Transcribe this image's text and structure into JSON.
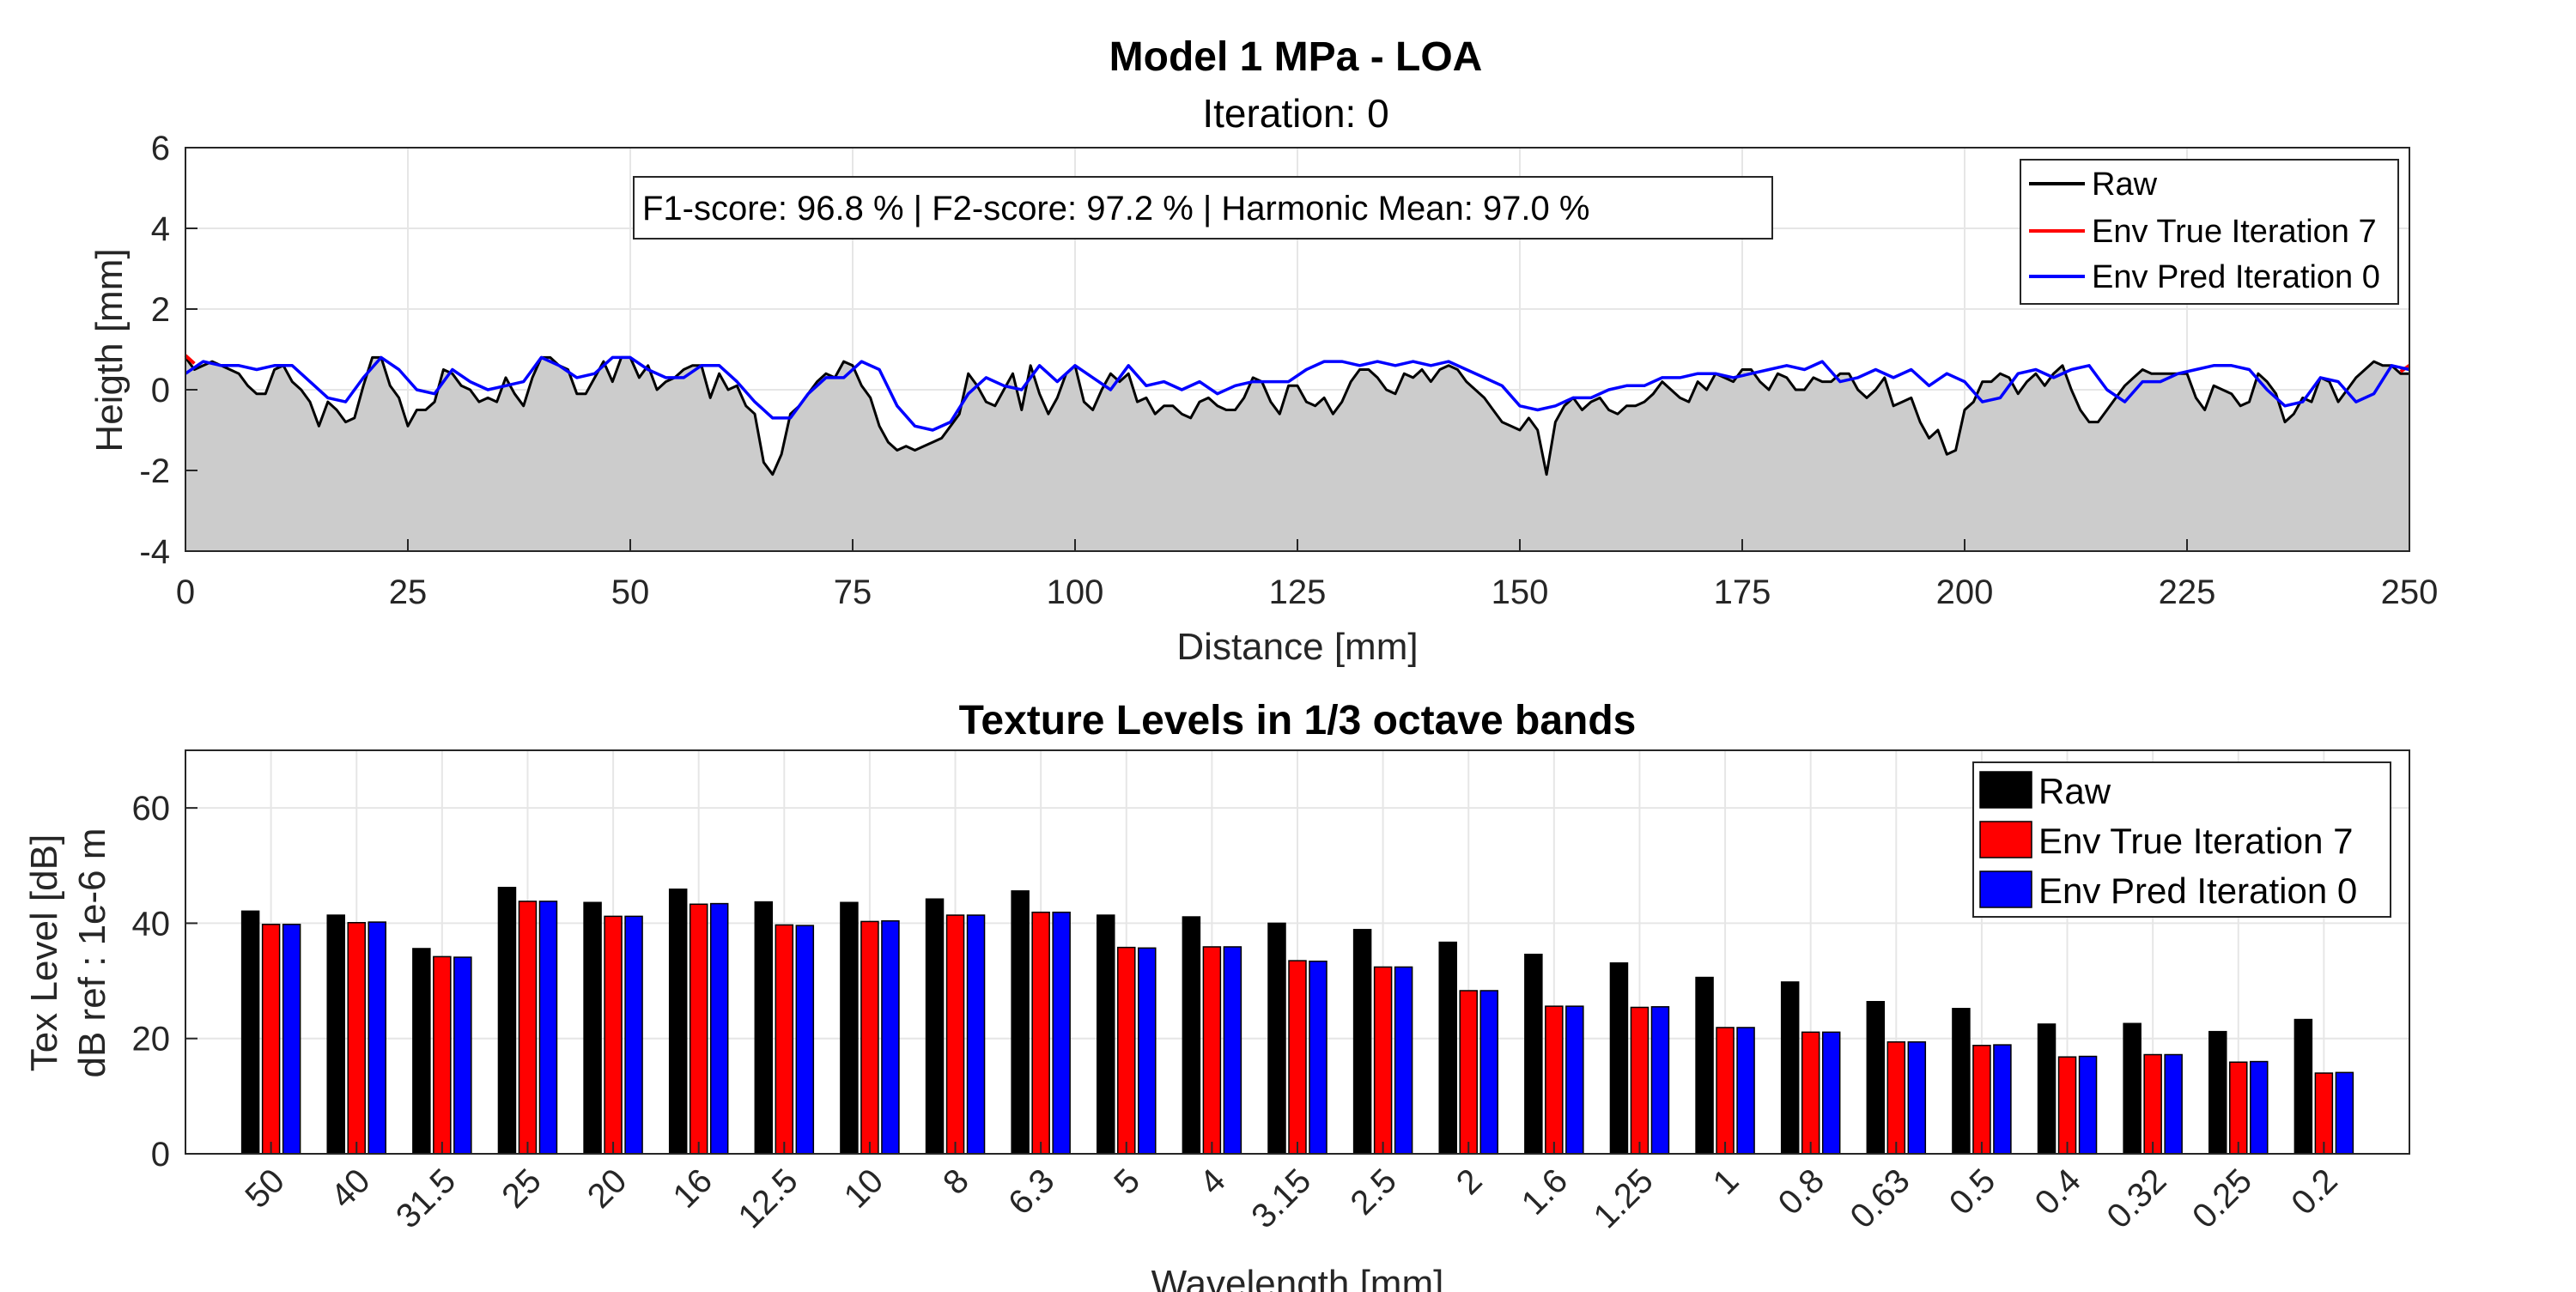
{
  "chart_data": [
    {
      "type": "line",
      "title": "Model 1 MPa - LOA",
      "subtitle": "Iteration: 0",
      "xlabel": "Distance [mm]",
      "ylabel": "Heigth [mm]",
      "xlim": [
        0,
        250
      ],
      "ylim": [
        -4,
        6
      ],
      "xticks": [
        0,
        25,
        50,
        75,
        100,
        125,
        150,
        175,
        200,
        225,
        250
      ],
      "yticks": [
        -4,
        -2,
        0,
        2,
        4,
        6
      ],
      "grid": true,
      "legend_position": "top-right",
      "annotation": "F1-score: 96.8 % | F2-score: 97.2 % | Harmonic Mean: 97.0 %",
      "series": [
        {
          "name": "Raw",
          "color": "#000000",
          "fill_below": "#cccccc",
          "x": [
            0,
            1,
            2,
            3,
            4,
            5,
            6,
            7,
            8,
            9,
            10,
            11,
            12,
            13,
            14,
            15,
            16,
            17,
            18,
            19,
            20,
            21,
            22,
            23,
            24,
            25,
            26,
            27,
            28,
            29,
            30,
            31,
            32,
            33,
            34,
            35,
            36,
            37,
            38,
            39,
            40,
            41,
            42,
            43,
            44,
            45,
            46,
            47,
            48,
            49,
            50,
            51,
            52,
            53,
            54,
            55,
            56,
            57,
            58,
            59,
            60,
            61,
            62,
            63,
            64,
            65,
            66,
            67,
            68,
            69,
            70,
            71,
            72,
            73,
            74,
            75,
            76,
            77,
            78,
            79,
            80,
            81,
            82,
            83,
            84,
            85,
            86,
            87,
            88,
            89,
            90,
            91,
            92,
            93,
            94,
            95,
            96,
            97,
            98,
            99,
            100,
            101,
            102,
            103,
            104,
            105,
            106,
            107,
            108,
            109,
            110,
            111,
            112,
            113,
            114,
            115,
            116,
            117,
            118,
            119,
            120,
            121,
            122,
            123,
            124,
            125,
            126,
            127,
            128,
            129,
            130,
            131,
            132,
            133,
            134,
            135,
            136,
            137,
            138,
            139,
            140,
            141,
            142,
            143,
            144,
            145,
            146,
            147,
            148,
            149,
            150,
            151,
            152,
            153,
            154,
            155,
            156,
            157,
            158,
            159,
            160,
            161,
            162,
            163,
            164,
            165,
            166,
            167,
            168,
            169,
            170,
            171,
            172,
            173,
            174,
            175,
            176,
            177,
            178,
            179,
            180,
            181,
            182,
            183,
            184,
            185,
            186,
            187,
            188,
            189,
            190,
            191,
            192,
            193,
            194,
            195,
            196,
            197,
            198,
            199,
            200,
            201,
            202,
            203,
            204,
            205,
            206,
            207,
            208,
            209,
            210,
            211,
            212,
            213,
            214,
            215,
            216,
            217,
            218,
            219,
            220,
            221,
            222,
            223,
            224,
            225,
            226,
            227,
            228,
            229,
            230,
            231,
            232,
            233,
            234,
            235,
            236,
            237,
            238,
            239,
            240,
            241,
            242,
            243,
            244,
            245,
            246,
            247,
            248,
            249,
            250
          ],
          "y": [
            0.8,
            0.5,
            0.6,
            0.7,
            0.6,
            0.5,
            0.4,
            0.1,
            -0.1,
            -0.1,
            0.5,
            0.6,
            0.2,
            0.0,
            -0.3,
            -0.9,
            -0.3,
            -0.5,
            -0.8,
            -0.7,
            0.1,
            0.8,
            0.8,
            0.1,
            -0.2,
            -0.9,
            -0.5,
            -0.5,
            -0.3,
            0.5,
            0.4,
            0.1,
            0.0,
            -0.3,
            -0.2,
            -0.3,
            0.3,
            -0.1,
            -0.4,
            0.3,
            0.8,
            0.8,
            0.6,
            0.5,
            -0.1,
            -0.1,
            0.3,
            0.7,
            0.2,
            0.8,
            0.8,
            0.3,
            0.6,
            0.0,
            0.2,
            0.3,
            0.5,
            0.6,
            0.6,
            -0.2,
            0.4,
            0.0,
            0.1,
            -0.4,
            -0.6,
            -1.8,
            -2.1,
            -1.6,
            -0.6,
            -0.4,
            -0.1,
            0.2,
            0.4,
            0.3,
            0.7,
            0.6,
            0.1,
            -0.2,
            -0.9,
            -1.3,
            -1.5,
            -1.4,
            -1.5,
            -1.4,
            -1.3,
            -1.2,
            -0.9,
            -0.6,
            0.4,
            0.1,
            -0.3,
            -0.4,
            0.0,
            0.4,
            -0.5,
            0.6,
            -0.1,
            -0.6,
            -0.2,
            0.4,
            0.6,
            -0.3,
            -0.5,
            0.0,
            0.4,
            0.2,
            0.4,
            -0.3,
            -0.2,
            -0.6,
            -0.4,
            -0.4,
            -0.6,
            -0.7,
            -0.3,
            -0.2,
            -0.4,
            -0.5,
            -0.5,
            -0.2,
            0.3,
            0.2,
            -0.3,
            -0.6,
            0.1,
            0.1,
            -0.3,
            -0.4,
            -0.2,
            -0.6,
            -0.3,
            0.2,
            0.5,
            0.5,
            0.3,
            0.0,
            -0.1,
            0.4,
            0.3,
            0.5,
            0.2,
            0.5,
            0.6,
            0.5,
            0.2,
            0.0,
            -0.2,
            -0.5,
            -0.8,
            -0.9,
            -1.0,
            -0.7,
            -1.0,
            -2.1,
            -0.8,
            -0.4,
            -0.2,
            -0.5,
            -0.3,
            -0.2,
            -0.5,
            -0.6,
            -0.4,
            -0.4,
            -0.3,
            -0.1,
            0.2,
            0.0,
            -0.2,
            -0.3,
            0.2,
            0.0,
            0.4,
            0.3,
            0.2,
            0.5,
            0.5,
            0.2,
            0.0,
            0.4,
            0.3,
            0.0,
            0.0,
            0.3,
            0.2,
            0.2,
            0.4,
            0.4,
            0.0,
            -0.2,
            0.0,
            0.3,
            -0.4,
            -0.3,
            -0.2,
            -0.8,
            -1.2,
            -1.0,
            -1.6,
            -1.5,
            -0.5,
            -0.3,
            0.2,
            0.2,
            0.4,
            0.3,
            -0.1,
            0.2,
            0.4,
            0.1,
            0.4,
            0.6,
            0.0,
            -0.5,
            -0.8,
            -0.8,
            -0.5,
            -0.2,
            0.1,
            0.3,
            0.5,
            0.4,
            0.4,
            0.4,
            0.4,
            0.4,
            -0.2,
            -0.5,
            0.1,
            0.0,
            -0.1,
            -0.4,
            -0.3,
            0.4,
            0.2,
            -0.1,
            -0.8,
            -0.6,
            -0.2,
            -0.3,
            0.3,
            0.2,
            -0.3,
            0.0,
            0.3,
            0.5,
            0.7,
            0.6,
            0.6,
            0.4,
            0.4
          ]
        },
        {
          "name": "Env True Iteration 7",
          "color": "#ff0000",
          "x": [
            0,
            1,
            249,
            250
          ],
          "y": [
            0.85,
            0.65,
            0.45,
            0.6
          ]
        },
        {
          "name": "Env Pred Iteration 0",
          "color": "#0000ff",
          "x": [
            0,
            2,
            4,
            6,
            8,
            10,
            12,
            14,
            16,
            18,
            20,
            22,
            24,
            26,
            28,
            30,
            32,
            34,
            36,
            38,
            40,
            42,
            44,
            46,
            48,
            50,
            52,
            54,
            56,
            58,
            60,
            62,
            64,
            66,
            68,
            70,
            72,
            74,
            76,
            78,
            80,
            82,
            84,
            86,
            88,
            90,
            92,
            94,
            96,
            98,
            100,
            102,
            104,
            106,
            108,
            110,
            112,
            114,
            116,
            118,
            120,
            122,
            124,
            126,
            128,
            130,
            132,
            134,
            136,
            138,
            140,
            142,
            144,
            146,
            148,
            150,
            152,
            154,
            156,
            158,
            160,
            162,
            164,
            166,
            168,
            170,
            172,
            174,
            176,
            178,
            180,
            182,
            184,
            186,
            188,
            190,
            192,
            194,
            196,
            198,
            200,
            202,
            204,
            206,
            208,
            210,
            212,
            214,
            216,
            218,
            220,
            222,
            224,
            226,
            228,
            230,
            232,
            234,
            236,
            238,
            240,
            242,
            244,
            246,
            248,
            250
          ],
          "y": [
            0.4,
            0.7,
            0.6,
            0.6,
            0.5,
            0.6,
            0.6,
            0.2,
            -0.2,
            -0.3,
            0.3,
            0.8,
            0.5,
            0.0,
            -0.1,
            0.5,
            0.2,
            0.0,
            0.1,
            0.2,
            0.8,
            0.6,
            0.3,
            0.4,
            0.8,
            0.8,
            0.5,
            0.3,
            0.3,
            0.6,
            0.6,
            0.2,
            -0.3,
            -0.7,
            -0.7,
            -0.1,
            0.3,
            0.3,
            0.7,
            0.5,
            -0.4,
            -0.9,
            -1.0,
            -0.8,
            -0.1,
            0.3,
            0.1,
            0.0,
            0.6,
            0.2,
            0.6,
            0.3,
            0.0,
            0.6,
            0.1,
            0.2,
            0.0,
            0.2,
            -0.1,
            0.1,
            0.2,
            0.2,
            0.2,
            0.5,
            0.7,
            0.7,
            0.6,
            0.7,
            0.6,
            0.7,
            0.6,
            0.7,
            0.5,
            0.3,
            0.1,
            -0.4,
            -0.5,
            -0.4,
            -0.2,
            -0.2,
            0.0,
            0.1,
            0.1,
            0.3,
            0.3,
            0.4,
            0.4,
            0.3,
            0.4,
            0.5,
            0.6,
            0.5,
            0.7,
            0.2,
            0.3,
            0.5,
            0.3,
            0.5,
            0.1,
            0.4,
            0.2,
            -0.3,
            -0.2,
            0.4,
            0.5,
            0.3,
            0.5,
            0.6,
            0.0,
            -0.3,
            0.2,
            0.2,
            0.4,
            0.5,
            0.6,
            0.6,
            0.5,
            0.0,
            -0.4,
            -0.3,
            0.3,
            0.2,
            -0.3,
            -0.1,
            0.6,
            0.5
          ]
        }
      ]
    },
    {
      "type": "bar",
      "title": "Texture Levels in 1/3 octave bands",
      "xlabel": "Wavelength [mm]",
      "ylabel_line1": "Tex Level [dB]",
      "ylabel_line2": "dB ref : 1e-6 m",
      "ylim": [
        0,
        70
      ],
      "yticks": [
        0,
        20,
        40,
        60
      ],
      "grid": true,
      "legend_position": "top-right",
      "categories": [
        "50",
        "40",
        "31.5",
        "25",
        "20",
        "16",
        "12.5",
        "10",
        "8",
        "6.3",
        "5",
        "4",
        "3.15",
        "2.5",
        "2",
        "1.6",
        "1.25",
        "1",
        "0.8",
        "0.63",
        "0.5",
        "0.4",
        "0.32",
        "0.25",
        "0.2"
      ],
      "series": [
        {
          "name": "Raw",
          "color": "#000000",
          "values": [
            42.1,
            41.4,
            35.6,
            46.2,
            43.6,
            45.9,
            43.7,
            43.6,
            44.2,
            45.6,
            41.4,
            41.1,
            40.0,
            38.9,
            36.7,
            34.6,
            33.1,
            30.6,
            29.8,
            26.4,
            25.2,
            22.5,
            22.6,
            21.2,
            23.3
          ]
        },
        {
          "name": "Env True Iteration 7",
          "color": "#ff0000",
          "values": [
            39.8,
            40.1,
            34.2,
            43.8,
            41.2,
            43.3,
            39.7,
            40.3,
            41.4,
            41.9,
            35.8,
            35.9,
            33.5,
            32.4,
            28.3,
            25.6,
            25.4,
            21.9,
            21.1,
            19.4,
            18.8,
            16.8,
            17.2,
            15.9,
            14.0
          ]
        },
        {
          "name": "Env Pred Iteration 0",
          "color": "#0000ff",
          "values": [
            39.8,
            40.2,
            34.1,
            43.8,
            41.2,
            43.4,
            39.6,
            40.4,
            41.4,
            41.9,
            35.7,
            35.9,
            33.4,
            32.4,
            28.3,
            25.6,
            25.5,
            21.9,
            21.1,
            19.4,
            18.9,
            16.9,
            17.2,
            16.0,
            14.1
          ]
        }
      ]
    }
  ]
}
